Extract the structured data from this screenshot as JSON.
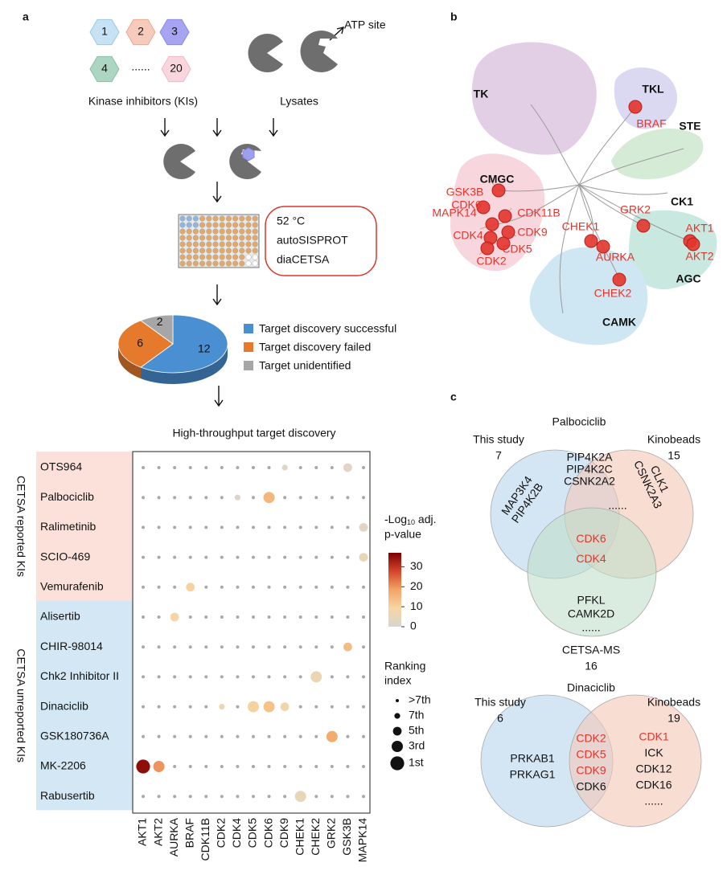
{
  "panel_labels": [
    "a",
    "b",
    "c"
  ],
  "workflow": {
    "inhibitor_numbers": [
      1,
      2,
      3,
      4,
      20
    ],
    "ellipsis": "......",
    "atp_site": "ATP site",
    "inhibitors_label": "Kinase inhibitors (KIs)",
    "lysates_label": "Lysates",
    "conditions": [
      "52 °C",
      "autoSISPROT",
      "diaCETSA"
    ]
  },
  "chart_data": [
    {
      "type": "pie",
      "categories": [
        "Target discovery successful",
        "Target discovery failed",
        "Target unidentified"
      ],
      "values": [
        12,
        6,
        2
      ],
      "colors": [
        "#4a8fd2",
        "#e67a2c",
        "#a6a6a6"
      ]
    },
    {
      "type": "dot_matrix",
      "title": "High-throughput target discovery",
      "row_groups": [
        {
          "name": "CETSA reported KIs",
          "color": "#fbe1d9",
          "members": [
            "OTS964",
            "Palbociclib",
            "Ralimetinib",
            "SCIO-469",
            "Vemurafenib"
          ]
        },
        {
          "name": "CETSA unreported KIs",
          "color": "#d3e8f4",
          "members": [
            "Alisertib",
            "CHIR-98014",
            "Chk2 Inhibitor II",
            "Dinaciclib",
            "GSK180736A",
            "MK-2206",
            "Rabusertib"
          ]
        }
      ],
      "columns": [
        "AKT1",
        "AKT2",
        "AURKA",
        "BRAF",
        "CDK11B",
        "CDK2",
        "CDK4",
        "CDK5",
        "CDK6",
        "CDK9",
        "CHEK1",
        "CHEK2",
        "GRK2",
        "GSK3B",
        "MAPK14"
      ],
      "points": [
        {
          "row": "OTS964",
          "column": "CDK9",
          "value": 2,
          "rank": "7th"
        },
        {
          "row": "OTS964",
          "column": "GSK3B",
          "value": 3,
          "rank": "5th"
        },
        {
          "row": "Palbociclib",
          "column": "CDK4",
          "value": 1,
          "rank": "7th"
        },
        {
          "row": "Palbociclib",
          "column": "CDK6",
          "value": 15,
          "rank": "3rd"
        },
        {
          "row": "Ralimetinib",
          "column": "MAPK14",
          "value": 3,
          "rank": "5th"
        },
        {
          "row": "SCIO-469",
          "column": "MAPK14",
          "value": 6,
          "rank": "5th"
        },
        {
          "row": "Vemurafenib",
          "column": "BRAF",
          "value": 10,
          "rank": "5th"
        },
        {
          "row": "Alisertib",
          "column": "AURKA",
          "value": 9,
          "rank": "5th"
        },
        {
          "row": "CHIR-98014",
          "column": "GSK3B",
          "value": 14,
          "rank": "5th"
        },
        {
          "row": "Chk2 Inhibitor II",
          "column": "CHEK2",
          "value": 6,
          "rank": "3rd"
        },
        {
          "row": "Dinaciclib",
          "column": "CDK2",
          "value": 6,
          "rank": "7th"
        },
        {
          "row": "Dinaciclib",
          "column": "CDK5",
          "value": 10,
          "rank": "3rd"
        },
        {
          "row": "Dinaciclib",
          "column": "CDK6",
          "value": 13,
          "rank": "3rd"
        },
        {
          "row": "Dinaciclib",
          "column": "CDK9",
          "value": 8,
          "rank": "5th"
        },
        {
          "row": "GSK180736A",
          "column": "GRK2",
          "value": 17,
          "rank": "3rd"
        },
        {
          "row": "MK-2206",
          "column": "AKT1",
          "value": 35,
          "rank": "1st"
        },
        {
          "row": "MK-2206",
          "column": "AKT2",
          "value": 20,
          "rank": "3rd"
        },
        {
          "row": "Rabusertib",
          "column": "CHEK1",
          "value": 5,
          "rank": "3rd"
        }
      ],
      "colorbar": {
        "title_parts": [
          "-Log",
          "10",
          " adj.",
          "p-value"
        ],
        "lim": [
          0,
          37
        ],
        "ticks": [
          0,
          10,
          20,
          30
        ],
        "colors": [
          "#d8d5d0",
          "#f6d6a4",
          "#f3a465",
          "#d5442c",
          "#7a0000"
        ]
      },
      "size_legend": {
        "title_lines": [
          "Ranking",
          "index"
        ],
        "labels": [
          ">7th",
          "7th",
          "5th",
          "3rd",
          "1st"
        ]
      }
    }
  ],
  "kinome_tree": {
    "groups": [
      "TK",
      "TKL",
      "STE",
      "CMGC",
      "CK1",
      "AGC",
      "CAMK"
    ],
    "kinases": [
      "BRAF",
      "GSK3B",
      "CDK6",
      "CDK11B",
      "MAPK14",
      "CDK9",
      "CDK4",
      "CDK5",
      "CDK2",
      "CHEK1",
      "GRK2",
      "AKT1",
      "AKT2",
      "AURKA",
      "CHEK2"
    ]
  },
  "venn": [
    {
      "title": "Palbociclib",
      "sets": [
        {
          "name": "This study",
          "count": 7
        },
        {
          "name": "Kinobeads",
          "count": 15
        },
        {
          "name": "CETSA-MS",
          "count": 16
        }
      ],
      "regions": [
        [
          "MAP3K4",
          "PIP4K2B"
        ],
        [
          "PIP4K2A",
          "PIP4K2C",
          "CSNK2A2"
        ],
        [
          "......"
        ],
        [
          "CLK1",
          "CSNK2A3"
        ],
        [
          "CDK6",
          "CDK4"
        ],
        [
          "PFKL",
          "CAMK2D",
          "......"
        ]
      ],
      "highlighted": [
        "CDK6",
        "CDK4"
      ]
    },
    {
      "title": "Dinaciclib",
      "sets": [
        {
          "name": "This study",
          "count": 6
        },
        {
          "name": "Kinobeads",
          "count": 19
        }
      ],
      "regions": [
        [
          "PRKAB1",
          "PRKAG1"
        ],
        [
          "CDK2",
          "CDK5",
          "CDK9",
          "CDK6"
        ],
        [
          "CDK1",
          "ICK",
          "CDK12",
          "CDK16",
          "......"
        ]
      ],
      "highlighted": [
        "CDK2",
        "CDK5",
        "CDK9",
        "CDK1"
      ]
    }
  ]
}
